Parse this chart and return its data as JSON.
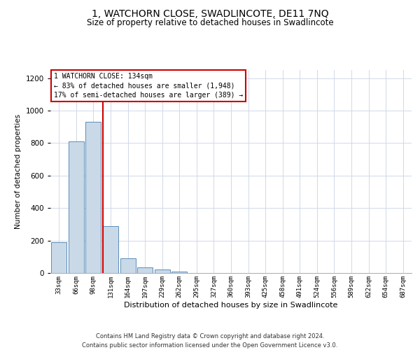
{
  "title": "1, WATCHORN CLOSE, SWADLINCOTE, DE11 7NQ",
  "subtitle": "Size of property relative to detached houses in Swadlincote",
  "xlabel": "Distribution of detached houses by size in Swadlincote",
  "ylabel": "Number of detached properties",
  "bar_color": "#c9d9e8",
  "bar_edge_color": "#5b8db8",
  "highlight_color": "#cc0000",
  "annotation_box_color": "#cc0000",
  "categories": [
    "33sqm",
    "66sqm",
    "98sqm",
    "131sqm",
    "164sqm",
    "197sqm",
    "229sqm",
    "262sqm",
    "295sqm",
    "327sqm",
    "360sqm",
    "393sqm",
    "425sqm",
    "458sqm",
    "491sqm",
    "524sqm",
    "556sqm",
    "589sqm",
    "622sqm",
    "654sqm",
    "687sqm"
  ],
  "values": [
    190,
    810,
    930,
    290,
    90,
    35,
    20,
    10,
    2,
    0,
    0,
    0,
    0,
    0,
    0,
    0,
    0,
    0,
    0,
    0,
    0
  ],
  "highlight_bar_index": 3,
  "annotation_text": "1 WATCHORN CLOSE: 134sqm\n← 83% of detached houses are smaller (1,948)\n17% of semi-detached houses are larger (389) →",
  "ylim": [
    0,
    1250
  ],
  "yticks": [
    0,
    200,
    400,
    600,
    800,
    1000,
    1200
  ],
  "grid_color": "#d0d8e8",
  "background_color": "#ffffff",
  "footer_line1": "Contains HM Land Registry data © Crown copyright and database right 2024.",
  "footer_line2": "Contains public sector information licensed under the Open Government Licence v3.0.",
  "fig_width": 6.0,
  "fig_height": 5.0,
  "dpi": 100
}
